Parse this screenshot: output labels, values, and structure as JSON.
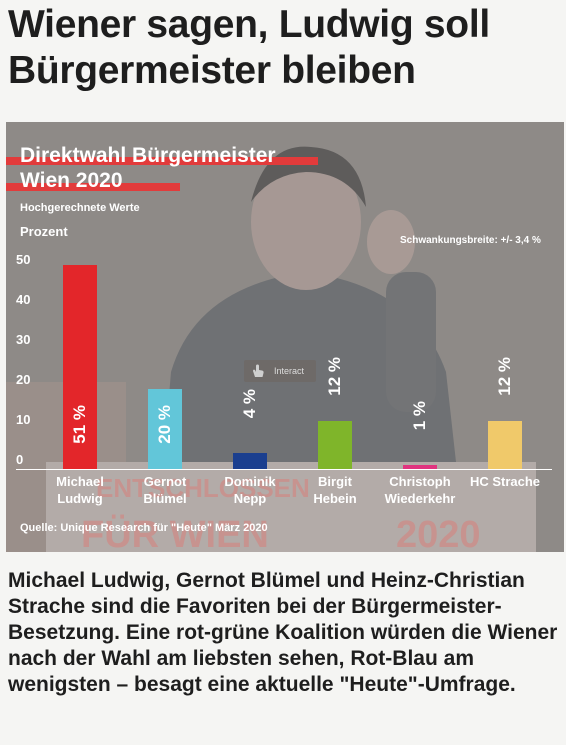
{
  "headline": "Wiener sagen, Ludwig soll Bürgermeister bleiben",
  "chart_data": {
    "type": "bar",
    "title_line1": "Direktwahl Bürgermeister",
    "title_line2": "Wien 2020",
    "subtitle": "Hochgerechnete Werte",
    "ylabel": "Prozent",
    "ylim": [
      0,
      50
    ],
    "yticks": [
      "0",
      "10",
      "20",
      "30",
      "40",
      "50"
    ],
    "margin_note": "Schwankungsbreite: +/- 3,4 %",
    "source": "Quelle: Unique Research für \"Heute\" März 2020",
    "categories": [
      [
        "Michael",
        "Ludwig"
      ],
      [
        "Gernot",
        "Blümel"
      ],
      [
        "Dominik",
        "Nepp"
      ],
      [
        "Birgit",
        "Hebein"
      ],
      [
        "Christoph",
        "Wiederkehr"
      ],
      [
        "HC Strache",
        ""
      ]
    ],
    "values": [
      51,
      20,
      4,
      12,
      1,
      12
    ],
    "value_labels": [
      "51 %",
      "20 %",
      "4 %",
      "12 %",
      "1 %",
      "12 %"
    ],
    "colors": [
      "#e3262a",
      "#62c6d9",
      "#1b3f8f",
      "#7fb52a",
      "#e0337f",
      "#f0c96a"
    ],
    "background_text": [
      "ENTSCHLOSSEN",
      "FÜR WIEN",
      "2020"
    ]
  },
  "interact_label": "Interact",
  "body": "Michael Ludwig, Gernot Blümel und Heinz-Christian Strache sind die Favoriten bei der Bürgermeister-Besetzung. Eine rot-grüne Koalition würden die Wiener nach der Wahl am liebsten sehen, Rot-Blau am wenigsten – besagt eine aktuelle \"Heute\"-Umfrage."
}
